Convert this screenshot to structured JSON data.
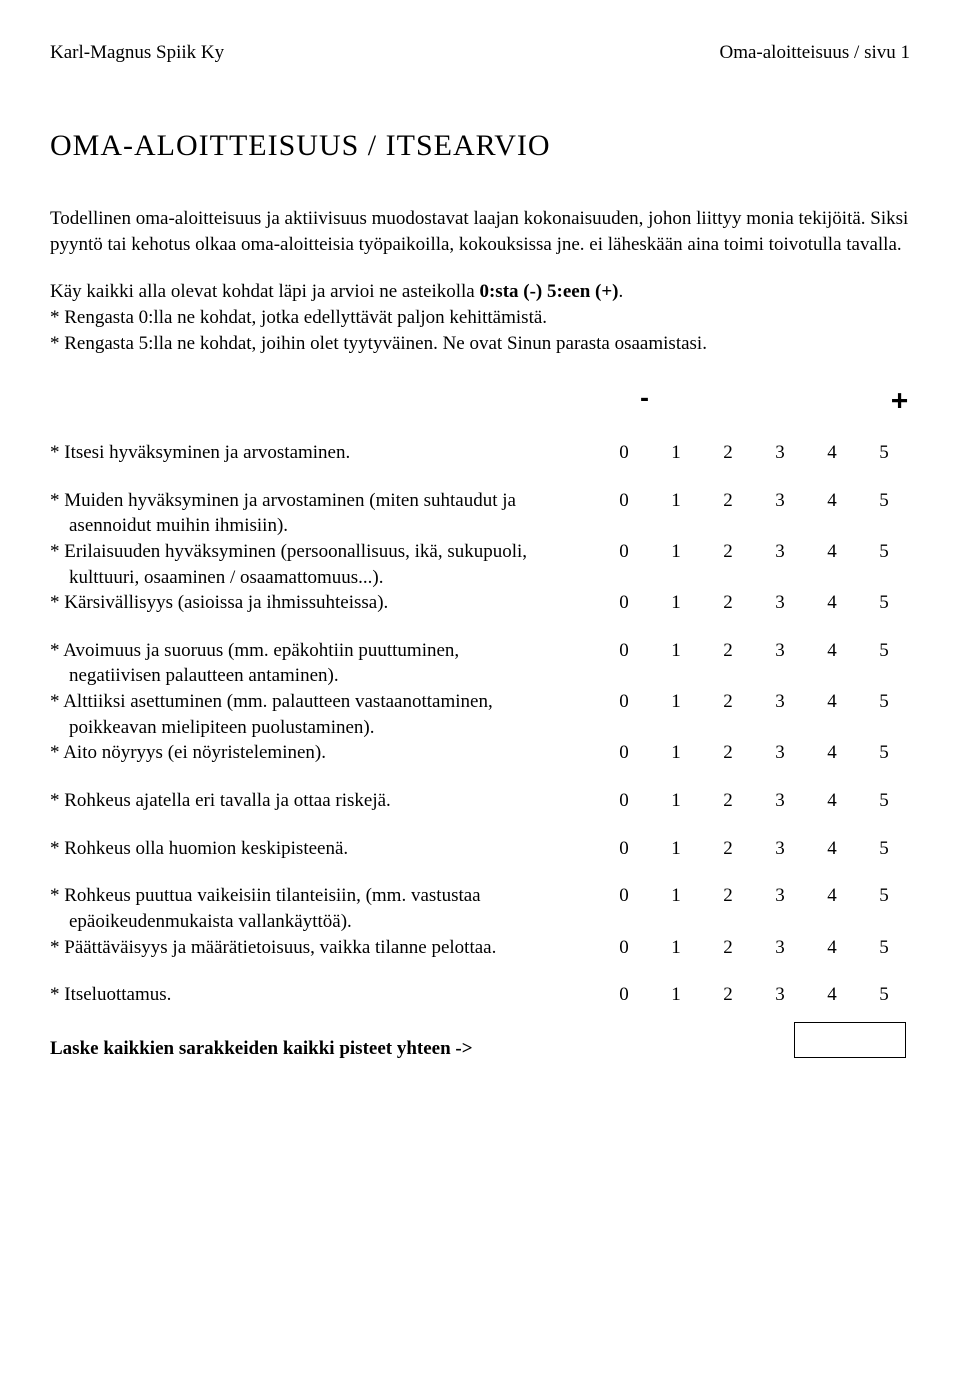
{
  "header": {
    "left": "Karl-Magnus Spiik Ky",
    "right": "Oma-aloitteisuus / sivu 1"
  },
  "title": "OMA-ALOITTEISUUS / ITSEARVIO",
  "intro": {
    "p1": "Todellinen oma-aloitteisuus ja aktiivisuus muodostavat laajan kokonaisuuden, johon liittyy monia tekijöitä. Siksi pyyntö tai kehotus olkaa oma-aloitteisia työpaikoilla, kokouksissa jne. ei läheskään aina toimi toivotulla tavalla."
  },
  "instructions": {
    "l1": "Käy kaikki alla olevat kohdat läpi ja arvioi ne asteikolla ",
    "l1b": "0:sta (-) 5:een (+)",
    "l1c": ".",
    "l2": "*  Rengasta 0:lla ne kohdat, jotka edellyttävät paljon kehittämistä.",
    "l3": "*  Rengasta 5:lla ne kohdat, joihin olet tyytyväinen. Ne ovat Sinun parasta osaamistasi."
  },
  "signs": {
    "minus": "-",
    "plus": "+"
  },
  "scale": [
    "0",
    "1",
    "2",
    "3",
    "4",
    "5"
  ],
  "groups": [
    [
      {
        "text": "*  Itsesi hyväksyminen ja arvostaminen."
      }
    ],
    [
      {
        "text": "*  Muiden hyväksyminen ja arvostaminen (miten suhtaudut ja",
        "cont": "    asennoidut muihin ihmisiin)."
      },
      {
        "text": "*  Erilaisuuden hyväksyminen (persoonallisuus, ikä, sukupuoli,",
        "cont": "    kulttuuri, osaaminen / osaamattomuus...)."
      },
      {
        "text": "*  Kärsivällisyys (asioissa ja ihmissuhteissa)."
      }
    ],
    [
      {
        "text": "*  Avoimuus ja suoruus (mm. epäkohtiin puuttuminen,",
        "cont": "    negatiivisen palautteen antaminen)."
      },
      {
        "text": "*  Alttiiksi asettuminen (mm. palautteen vastaanottaminen,",
        "cont": "    poikkeavan mielipiteen puolustaminen)."
      },
      {
        "text": "*  Aito nöyryys (ei nöyristeleminen)."
      }
    ],
    [
      {
        "text": "*  Rohkeus ajatella eri tavalla ja ottaa riskejä."
      }
    ],
    [
      {
        "text": "*  Rohkeus olla huomion keskipisteenä."
      }
    ],
    [
      {
        "text": "*  Rohkeus puuttua vaikeisiin tilanteisiin, (mm. vastustaa",
        "cont": "    epäoikeudenmukaista vallankäyttöä)."
      },
      {
        "text": "*  Päättäväisyys ja määrätietoisuus, vaikka tilanne pelottaa."
      }
    ],
    [
      {
        "text": "*  Itseluottamus."
      }
    ]
  ],
  "footer": "Laske kaikkien sarakkeiden kaikki pisteet yhteen ->"
}
